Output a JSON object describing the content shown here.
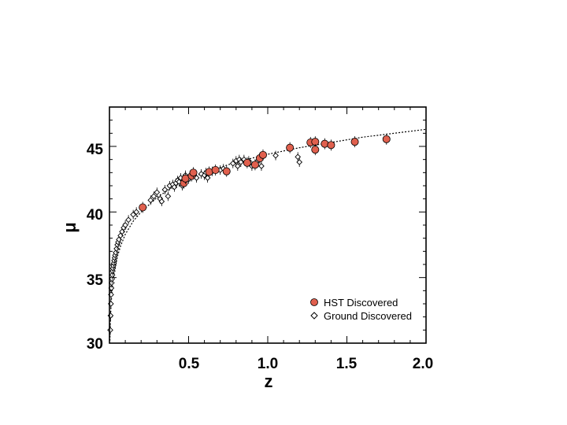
{
  "chart_data": {
    "type": "scatter",
    "xlabel": "z",
    "ylabel": "μ",
    "xlim": [
      0,
      2.0
    ],
    "ylim": [
      30,
      48
    ],
    "x_ticks": [
      0.5,
      1.0,
      1.5,
      2.0
    ],
    "x_tick_labels": [
      "0.5",
      "1.0",
      "1.5",
      "2.0"
    ],
    "y_ticks": [
      30,
      35,
      40,
      45
    ],
    "y_tick_labels": [
      "30",
      "35",
      "40",
      "45"
    ],
    "grid": false,
    "legend": {
      "position": "bottom-right",
      "entries": [
        "HST Discovered",
        "Ground Discovered"
      ]
    },
    "series": [
      {
        "name": "HST Discovered",
        "marker": "filled-circle",
        "color": "#e0604e",
        "points": [
          [
            0.21,
            40.35
          ],
          [
            0.47,
            42.2
          ],
          [
            0.48,
            42.55
          ],
          [
            0.52,
            42.75
          ],
          [
            0.53,
            43.0
          ],
          [
            0.63,
            43.05
          ],
          [
            0.67,
            43.2
          ],
          [
            0.74,
            43.1
          ],
          [
            0.87,
            43.75
          ],
          [
            0.92,
            43.6
          ],
          [
            0.95,
            44.1
          ],
          [
            0.97,
            44.35
          ],
          [
            1.14,
            44.9
          ],
          [
            1.27,
            45.3
          ],
          [
            1.3,
            45.35
          ],
          [
            1.3,
            44.75
          ],
          [
            1.36,
            45.2
          ],
          [
            1.4,
            45.1
          ],
          [
            1.55,
            45.35
          ],
          [
            1.75,
            45.55
          ]
        ]
      },
      {
        "name": "Ground Discovered",
        "marker": "open-diamond",
        "color": "#000000",
        "points": [
          [
            0.005,
            31.0
          ],
          [
            0.007,
            32.1
          ],
          [
            0.009,
            33.0
          ],
          [
            0.01,
            33.7
          ],
          [
            0.012,
            34.2
          ],
          [
            0.014,
            34.6
          ],
          [
            0.016,
            34.9
          ],
          [
            0.018,
            35.2
          ],
          [
            0.02,
            35.5
          ],
          [
            0.022,
            35.7
          ],
          [
            0.025,
            35.9
          ],
          [
            0.028,
            36.1
          ],
          [
            0.03,
            36.3
          ],
          [
            0.033,
            36.5
          ],
          [
            0.036,
            36.7
          ],
          [
            0.04,
            36.9
          ],
          [
            0.045,
            37.2
          ],
          [
            0.05,
            37.5
          ],
          [
            0.055,
            37.7
          ],
          [
            0.06,
            37.9
          ],
          [
            0.07,
            38.2
          ],
          [
            0.08,
            38.5
          ],
          [
            0.09,
            38.8
          ],
          [
            0.1,
            39.0
          ],
          [
            0.12,
            39.4
          ],
          [
            0.15,
            39.8
          ],
          [
            0.17,
            40.0
          ],
          [
            0.26,
            40.9
          ],
          [
            0.28,
            41.2
          ],
          [
            0.3,
            41.5
          ],
          [
            0.32,
            41.0
          ],
          [
            0.33,
            40.8
          ],
          [
            0.35,
            41.7
          ],
          [
            0.37,
            41.2
          ],
          [
            0.38,
            42.0
          ],
          [
            0.4,
            42.1
          ],
          [
            0.41,
            41.9
          ],
          [
            0.42,
            42.2
          ],
          [
            0.43,
            42.4
          ],
          [
            0.44,
            42.3
          ],
          [
            0.45,
            42.6
          ],
          [
            0.46,
            42.0
          ],
          [
            0.48,
            42.8
          ],
          [
            0.5,
            42.5
          ],
          [
            0.51,
            42.7
          ],
          [
            0.55,
            42.6
          ],
          [
            0.58,
            42.9
          ],
          [
            0.6,
            42.8
          ],
          [
            0.61,
            43.0
          ],
          [
            0.62,
            42.6
          ],
          [
            0.65,
            43.1
          ],
          [
            0.7,
            43.2
          ],
          [
            0.72,
            43.3
          ],
          [
            0.78,
            43.7
          ],
          [
            0.8,
            43.9
          ],
          [
            0.81,
            43.5
          ],
          [
            0.82,
            44.0
          ],
          [
            0.83,
            43.8
          ],
          [
            0.85,
            44.0
          ],
          [
            0.88,
            43.9
          ],
          [
            0.9,
            43.5
          ],
          [
            0.93,
            43.8
          ],
          [
            0.96,
            43.5
          ],
          [
            1.05,
            44.3
          ],
          [
            1.19,
            44.2
          ],
          [
            1.2,
            43.8
          ]
        ]
      },
      {
        "name": "",
        "marker": "dotted-line",
        "color": "#000000",
        "points": [
          [
            0.003,
            30.2
          ],
          [
            0.005,
            31.3
          ],
          [
            0.01,
            32.9
          ],
          [
            0.02,
            34.5
          ],
          [
            0.03,
            35.4
          ],
          [
            0.05,
            36.6
          ],
          [
            0.07,
            37.4
          ],
          [
            0.1,
            38.3
          ],
          [
            0.15,
            39.3
          ],
          [
            0.2,
            40.0
          ],
          [
            0.3,
            41.1
          ],
          [
            0.4,
            41.9
          ],
          [
            0.5,
            42.5
          ],
          [
            0.6,
            43.0
          ],
          [
            0.7,
            43.4
          ],
          [
            0.8,
            43.8
          ],
          [
            0.9,
            44.1
          ],
          [
            1.0,
            44.4
          ],
          [
            1.2,
            44.9
          ],
          [
            1.4,
            45.3
          ],
          [
            1.6,
            45.7
          ],
          [
            1.8,
            46.0
          ],
          [
            2.0,
            46.3
          ]
        ]
      }
    ]
  }
}
